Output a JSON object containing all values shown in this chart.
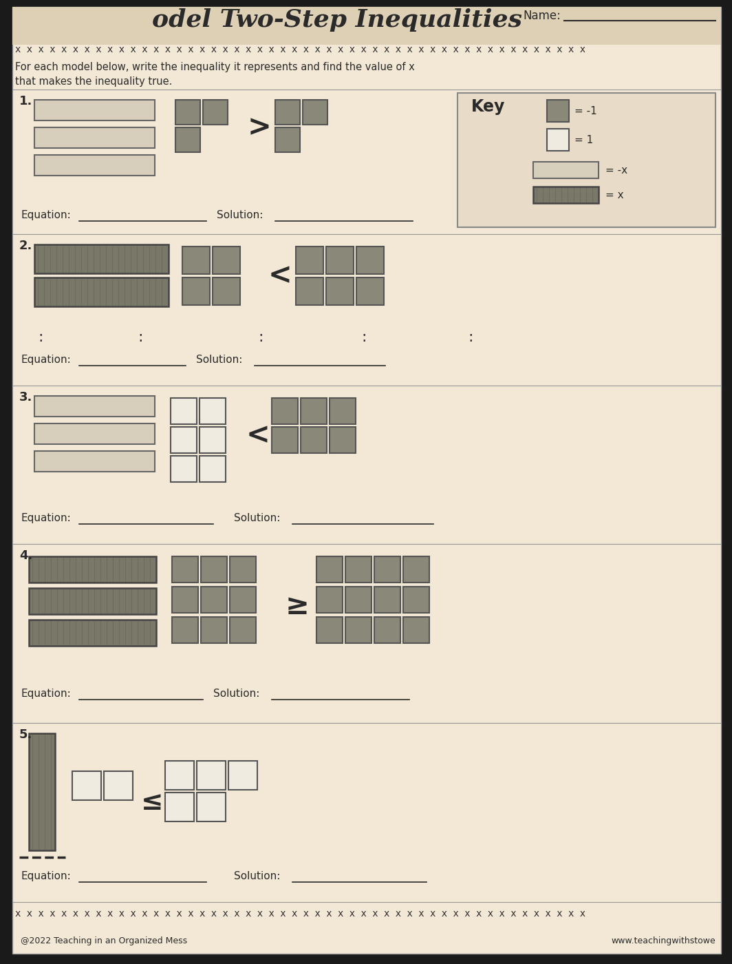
{
  "title": "odel Two-Step Inequalities",
  "name_label": "Name:",
  "paper_color": "#f2e8d5",
  "dark_bg": "#1a1a1a",
  "section_bg": "#ede3ce",
  "text_color": "#2a2a2a",
  "gray_tile": "#8a8878",
  "white_tile": "#f0ebe0",
  "dark_bar": "#7a7868",
  "light_bar": "#d8cebc",
  "key_bg": "#e8dcc8",
  "x_stripe": "#6a6858",
  "instructions": "For each model below, write the inequality it represents and find the value of x\nthat makes the inequality true.",
  "footer_text": "@2022 Teaching in an Organized Mess",
  "footer_right": "www.teachingwithstowe"
}
